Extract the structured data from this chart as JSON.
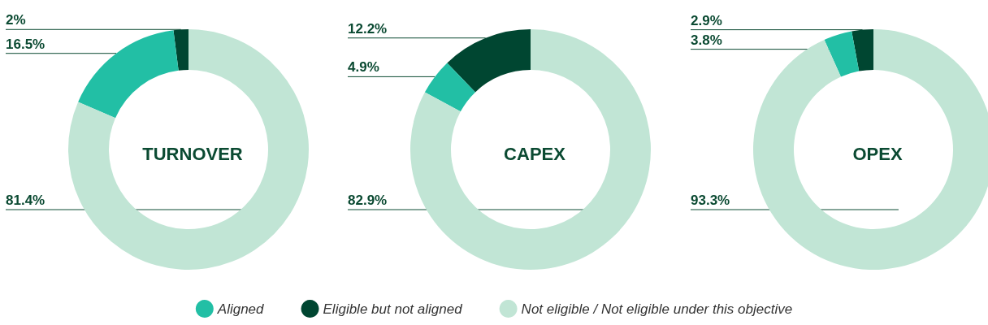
{
  "chart_data": [
    {
      "type": "donut",
      "title": "TURNOVER",
      "categories": [
        null,
        null,
        null
      ],
      "values": [
        16.5,
        2,
        81.4
      ],
      "colors": [
        "#22bfa5",
        "#004631",
        "#c1e5d5"
      ],
      "value_labels": [
        "16.5%",
        "2%",
        "81.4%"
      ]
    },
    {
      "type": "donut",
      "title": "CAPEX",
      "categories": [
        null,
        null,
        null
      ],
      "values": [
        4.9,
        12.2,
        82.9
      ],
      "colors": [
        "#22bfa5",
        "#004631",
        "#c1e5d5"
      ],
      "value_labels": [
        "4.9%",
        "12.2%",
        "82.9%"
      ]
    },
    {
      "type": "donut",
      "title": "OPEX",
      "categories": [
        "Aligned",
        "Eligible but not aligned",
        "Not eligible / Not eligible under this objective"
      ],
      "values": [
        3.8,
        2.9,
        93.3
      ],
      "colors": [
        "#22bfa5",
        "#004631",
        "#c1e5d5"
      ],
      "value_labels": [
        "3.8%",
        "2.9%",
        "93.3%"
      ],
      "legend": "bottom"
    }
  ]
}
